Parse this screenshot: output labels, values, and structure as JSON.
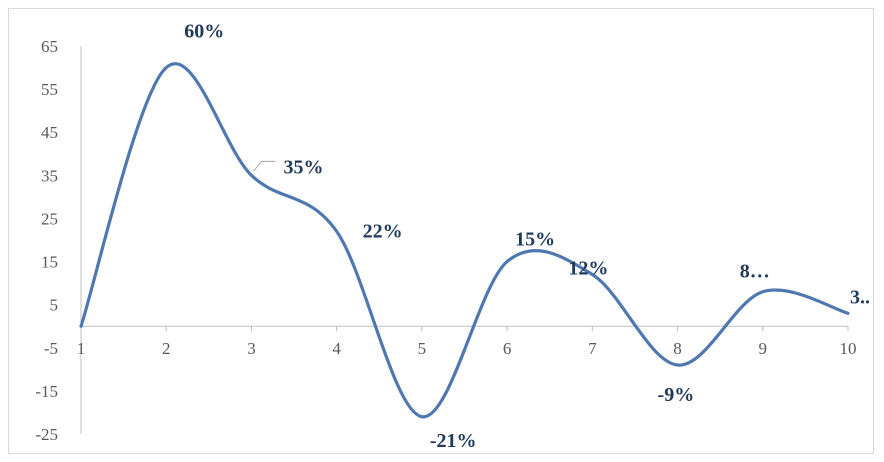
{
  "chart_data": {
    "type": "line",
    "title": "",
    "xlabel": "",
    "ylabel": "",
    "x": [
      1,
      2,
      3,
      4,
      5,
      6,
      7,
      8,
      9,
      10
    ],
    "series": [
      {
        "values": [
          0,
          60,
          35,
          22,
          -21,
          15,
          12,
          -9,
          8,
          3
        ],
        "data_labels": [
          "",
          "60%",
          "35%",
          "22%",
          "-21%",
          "15%",
          "12%",
          "-9%",
          "8…",
          "3.."
        ]
      }
    ],
    "ylim": [
      -25,
      65
    ],
    "yticks": [
      65,
      55,
      45,
      35,
      25,
      15,
      5,
      -5,
      -15,
      -25
    ],
    "xticks": [
      1,
      2,
      3,
      4,
      5,
      6,
      7,
      8,
      9,
      10
    ],
    "smooth": true,
    "grid": false,
    "legend": "none",
    "colors": {
      "line": "#4f78b0",
      "label": "#213a5c",
      "axis": "#bfbfbf",
      "tick": "#595959",
      "leader": "#a6a6a6"
    }
  }
}
